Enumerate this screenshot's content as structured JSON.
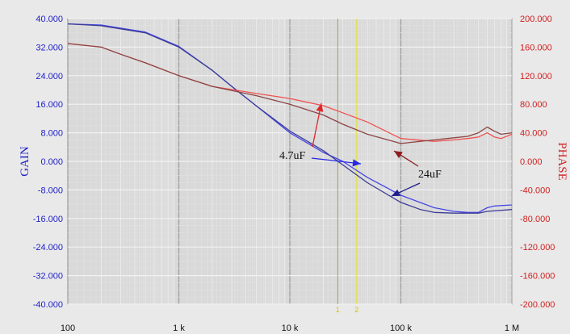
{
  "chart_data": {
    "type": "line",
    "x_scale": "log",
    "xlim": [
      100,
      1000000
    ],
    "x_tick_labels": [
      "100",
      "1 k",
      "10 k",
      "100 k",
      "1 M"
    ],
    "y_left": {
      "label": "GAIN",
      "lim": [
        -40,
        40
      ],
      "tick_labels": [
        "40.000",
        "32.000",
        "24.000",
        "16.000",
        "8.000",
        "0.000",
        "-8.000",
        "-16.000",
        "-24.000",
        "-32.000",
        "-40.000"
      ]
    },
    "y_right": {
      "label": "PHASE",
      "lim": [
        -200,
        200
      ],
      "tick_labels": [
        "200.000",
        "160.000",
        "120.000",
        "80.000",
        "40.000",
        "0.000",
        "-40.000",
        "-80.000",
        "-120.000",
        "-160.000",
        "-200.000"
      ]
    },
    "grid": true,
    "cursors": [
      {
        "label": "1",
        "x": 27000
      },
      {
        "label": "2",
        "x": 40000
      }
    ],
    "series": [
      {
        "axis": "left",
        "color": "#4646e6",
        "x": [
          100,
          200,
          500,
          1000,
          2000,
          3000,
          5000,
          10000,
          20000,
          30000,
          50000,
          100000,
          200000,
          300000,
          400000,
          500000,
          600000,
          700000,
          1000000
        ],
        "y": [
          38.5,
          38.2,
          36.2,
          32.2,
          25.5,
          21.0,
          15.5,
          8.0,
          2.5,
          0.0,
          -4.5,
          -9.5,
          -13.0,
          -14.0,
          -14.3,
          -14.3,
          -13.0,
          -12.5,
          -12.2
        ]
      },
      {
        "axis": "left",
        "color": "#3c3c96",
        "x": [
          100,
          200,
          500,
          1000,
          2000,
          3000,
          5000,
          10000,
          20000,
          30000,
          50000,
          100000,
          150000,
          200000,
          300000,
          500000,
          600000,
          1000000
        ],
        "y": [
          38.5,
          38.0,
          36.0,
          32.0,
          25.5,
          21.0,
          15.5,
          8.5,
          3.0,
          -1.0,
          -6.0,
          -11.5,
          -13.5,
          -14.3,
          -14.5,
          -14.5,
          -14.0,
          -13.5
        ]
      },
      {
        "axis": "right",
        "color": "#f05050",
        "x": [
          100,
          200,
          300,
          500,
          1000,
          2000,
          5000,
          10000,
          20000,
          30000,
          50000,
          100000,
          200000,
          300000,
          400000,
          500000,
          600000,
          700000,
          800000,
          1000000
        ],
        "y": [
          165,
          160,
          150,
          138,
          120,
          105,
          95,
          88,
          78,
          68,
          55,
          32,
          28,
          30,
          32,
          34,
          40,
          34,
          32,
          38
        ]
      },
      {
        "axis": "right",
        "color": "#8c4646",
        "x": [
          100,
          200,
          300,
          500,
          1000,
          2000,
          5000,
          10000,
          20000,
          30000,
          50000,
          100000,
          150000,
          200000,
          300000,
          400000,
          500000,
          600000,
          700000,
          800000,
          1000000
        ],
        "y": [
          165,
          160,
          150,
          138,
          120,
          105,
          92,
          80,
          65,
          52,
          38,
          25,
          28,
          30,
          33,
          35,
          40,
          48,
          42,
          38,
          40
        ]
      }
    ],
    "annotations": [
      {
        "text": "4.7uF"
      },
      {
        "text": "24uF"
      }
    ]
  }
}
